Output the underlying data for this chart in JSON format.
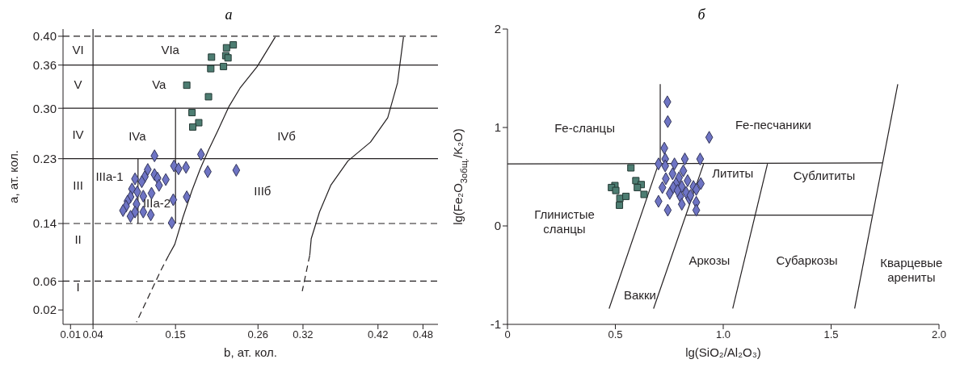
{
  "chart_data": [
    {
      "type": "scatter",
      "title": "а",
      "xlabel": "b, ат. кол.",
      "ylabel": "a, ат. кол.",
      "xlim": [
        0,
        0.5
      ],
      "ylim": [
        0,
        0.41
      ],
      "xticks": [
        0.01,
        0.04,
        0.15,
        0.26,
        0.32,
        0.42,
        0.48
      ],
      "yticks": [
        0.02,
        0.06,
        0.14,
        0.23,
        {
          "value": 0.3,
          "label": "0.30"
        },
        0.36,
        {
          "value": 0.4,
          "label": "0.40"
        }
      ],
      "ref_lines": [
        {
          "axis": "y",
          "value": 0.4,
          "color": "#231f20",
          "line_style": "dashed"
        },
        {
          "axis": "y",
          "value": 0.36,
          "color": "#231f20",
          "line_style": "solid"
        },
        {
          "axis": "y",
          "value": 0.3,
          "color": "#231f20",
          "line_style": "solid"
        },
        {
          "axis": "y",
          "value": 0.23,
          "color": "#231f20",
          "line_style": "solid"
        },
        {
          "axis": "y",
          "value": 0.14,
          "color": "#231f20",
          "line_style": "dashed"
        },
        {
          "axis": "y",
          "value": 0.06,
          "color": "#231f20",
          "line_style": "dashed"
        },
        {
          "axis": "x",
          "value": 0.04,
          "color": "#231f20",
          "line_style": "solid"
        }
      ],
      "series": [
        {
          "type": "line",
          "color": "#231f20",
          "line_style": "solid",
          "x": [
            0.283,
            0.259,
            0.236,
            0.221,
            0.206,
            0.194,
            0.183,
            0.172,
            0.16,
            0.149,
            0.141
          ],
          "values": [
            0.399,
            0.358,
            0.328,
            0.302,
            0.268,
            0.242,
            0.216,
            0.186,
            0.149,
            0.111,
            0.096
          ]
        },
        {
          "type": "line",
          "color": "#231f20",
          "line_style": "dashed",
          "x": [
            0.141,
            0.13,
            0.098
          ],
          "values": [
            0.096,
            0.074,
            0.003
          ]
        },
        {
          "type": "line",
          "color": "#231f20",
          "line_style": "solid",
          "x": [
            0.454,
            0.446,
            0.433,
            0.41,
            0.38,
            0.357,
            0.342,
            0.331,
            0.329
          ],
          "values": [
            0.399,
            0.335,
            0.287,
            0.253,
            0.227,
            0.193,
            0.156,
            0.119,
            0.096
          ]
        },
        {
          "type": "line",
          "color": "#231f20",
          "line_style": "dashed",
          "x": [
            0.329,
            0.319
          ],
          "values": [
            0.096,
            0.046
          ]
        },
        {
          "type": "line",
          "color": "#231f20",
          "line_style": "solid",
          "x": [
            0.15,
            0.15
          ],
          "values": [
            0.14,
            0.3
          ]
        },
        {
          "type": "line",
          "color": "#231f20",
          "line_style": "solid",
          "x": [
            0.1,
            0.1
          ],
          "values": [
            0.14,
            0.23
          ]
        },
        {
          "color": "#4d7d72",
          "marker": "square",
          "x": [
            0.227,
            0.218,
            0.217,
            0.22,
            0.198,
            0.197,
            0.214,
            0.165,
            0.194,
            0.172,
            0.181,
            0.173
          ],
          "values": [
            0.388,
            0.384,
            0.373,
            0.37,
            0.371,
            0.355,
            0.358,
            0.332,
            0.316,
            0.294,
            0.28,
            0.274
          ]
        },
        {
          "color": "#6e74c4",
          "marker": "diamond",
          "x": [
            0.122,
            0.184,
            0.148,
            0.164,
            0.154,
            0.193,
            0.231,
            0.113,
            0.122,
            0.109,
            0.096,
            0.105,
            0.126,
            0.137,
            0.128,
            0.092,
            0.099,
            0.118,
            0.107,
            0.09,
            0.086,
            0.098,
            0.084,
            0.08,
            0.096,
            0.107,
            0.09,
            0.117,
            0.147,
            0.165,
            0.145
          ],
          "values": [
            0.234,
            0.236,
            0.22,
            0.218,
            0.216,
            0.212,
            0.214,
            0.215,
            0.208,
            0.205,
            0.202,
            0.198,
            0.203,
            0.201,
            0.193,
            0.188,
            0.184,
            0.182,
            0.178,
            0.177,
            0.171,
            0.167,
            0.164,
            0.158,
            0.156,
            0.156,
            0.15,
            0.152,
            0.173,
            0.177,
            0.141
          ]
        }
      ],
      "annotations": [
        "VI",
        "V",
        "IV",
        "III",
        "II",
        "I",
        "VIa",
        "Va",
        "IVa",
        "IVб",
        "IIIб",
        "IIIa-1",
        "IIIa-2"
      ]
    },
    {
      "type": "scatter",
      "title": "б",
      "xlabel": "lg(SiO₂/Al₂O₃)",
      "ylabel": "lg(Fe₂O$_{3общ.}$/K₂O)",
      "xlim": [
        0,
        2
      ],
      "ylim": [
        -1,
        2
      ],
      "xticks": [
        0,
        0.5,
        {
          "value": 1,
          "label": "1.0"
        },
        1.5,
        {
          "value": 2,
          "label": "2.0"
        }
      ],
      "yticks": [
        -1,
        0,
        1,
        2
      ],
      "series": [
        {
          "type": "line",
          "color": "#231f20",
          "line_style": "solid",
          "x": [
            0.708,
            0.708
          ],
          "values": [
            1.44,
            0.63
          ]
        },
        {
          "type": "line",
          "color": "#231f20",
          "line_style": "solid",
          "x": [
            0,
            1.737
          ],
          "values": [
            0.63,
            0.64
          ]
        },
        {
          "type": "line",
          "color": "#231f20",
          "line_style": "solid",
          "x": [
            0.828,
            1.69
          ],
          "values": [
            0.11,
            0.11
          ]
        },
        {
          "type": "line",
          "color": "#231f20",
          "line_style": "solid",
          "x": [
            0.471,
            0.7
          ],
          "values": [
            -0.84,
            0.63
          ]
        },
        {
          "type": "line",
          "color": "#231f20",
          "line_style": "solid",
          "x": [
            0.677,
            0.909
          ],
          "values": [
            -0.84,
            0.63
          ]
        },
        {
          "type": "line",
          "color": "#231f20",
          "line_style": "solid",
          "x": [
            1.044,
            1.205
          ],
          "values": [
            -0.84,
            0.63
          ]
        },
        {
          "type": "line",
          "color": "#231f20",
          "line_style": "solid",
          "x": [
            1.609,
            1.809
          ],
          "values": [
            -0.84,
            1.44
          ]
        },
        {
          "color": "#4d7d72",
          "marker": "square",
          "x": [
            0.572,
            0.498,
            0.482,
            0.502,
            0.521,
            0.519,
            0.549,
            0.595,
            0.62,
            0.602,
            0.633
          ],
          "values": [
            0.59,
            0.41,
            0.39,
            0.36,
            0.28,
            0.21,
            0.3,
            0.46,
            0.42,
            0.39,
            0.32
          ]
        },
        {
          "color": "#6e74c4",
          "marker": "diamond",
          "x": [
            0.741,
            0.743,
            0.935,
            0.727,
            0.731,
            0.822,
            0.893,
            0.7,
            0.731,
            0.774,
            0.815,
            0.765,
            0.734,
            0.795,
            0.835,
            0.781,
            0.862,
            0.896,
            0.718,
            0.768,
            0.808,
            0.875,
            0.752,
            0.801,
            0.842,
            0.7,
            0.808,
            0.875,
            0.743,
            0.875,
            0.788,
            0.828,
            0.848
          ],
          "values": [
            1.26,
            1.06,
            0.9,
            0.79,
            0.68,
            0.68,
            0.68,
            0.63,
            0.61,
            0.63,
            0.56,
            0.53,
            0.48,
            0.49,
            0.46,
            0.43,
            0.4,
            0.43,
            0.39,
            0.39,
            0.4,
            0.37,
            0.33,
            0.3,
            0.28,
            0.25,
            0.22,
            0.24,
            0.16,
            0.16,
            0.36,
            0.34,
            0.31
          ]
        }
      ],
      "annotations": [
        "Fe-сланцы",
        "Fe-песчаники",
        "Лититы",
        "Сублититы",
        "Глинистые\nсланцы",
        "Аркозы",
        "Субаркозы",
        "Кварцевые\nарениты",
        "Вакки"
      ]
    }
  ]
}
